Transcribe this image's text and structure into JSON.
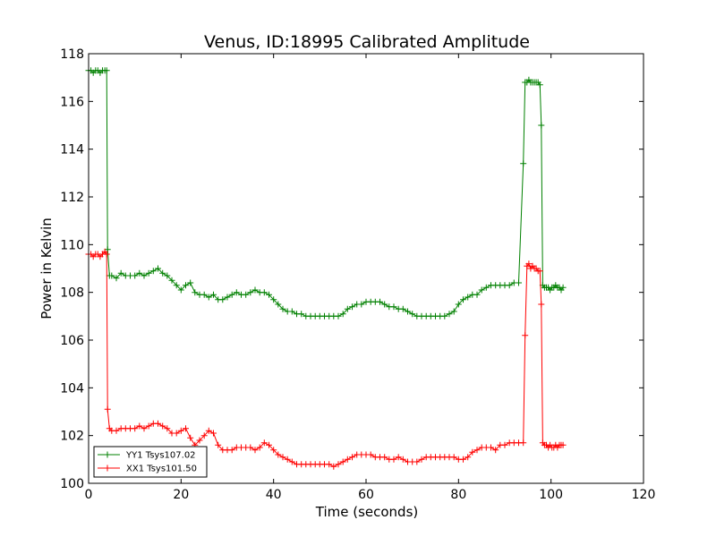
{
  "chart_data": {
    "type": "line",
    "title": "Venus, ID:18995 Calibrated Amplitude",
    "xlabel": "Time (seconds)",
    "ylabel": "Power in Kelvin",
    "xlim": [
      0,
      120
    ],
    "ylim": [
      100,
      118
    ],
    "xticks": [
      0,
      20,
      40,
      60,
      80,
      100,
      120
    ],
    "yticks": [
      100,
      102,
      104,
      106,
      108,
      110,
      112,
      114,
      116,
      118
    ],
    "grid": false,
    "legend": {
      "placement": "lower-left"
    },
    "marker": "+",
    "series": [
      {
        "name": "YY1 Tsys107.02",
        "color": "#008000",
        "x": [
          0.0,
          0.5,
          1.0,
          1.5,
          2.0,
          2.5,
          3.0,
          3.5,
          3.9,
          4.1,
          4.5,
          5,
          6,
          7,
          8,
          9,
          10,
          11,
          12,
          13,
          14,
          15,
          16,
          17,
          18,
          19,
          20,
          21,
          22,
          23,
          24,
          25,
          26,
          27,
          28,
          29,
          30,
          31,
          32,
          33,
          34,
          35,
          36,
          37,
          38,
          39,
          40,
          41,
          42,
          43,
          44,
          45,
          46,
          47,
          48,
          49,
          50,
          51,
          52,
          53,
          54,
          55,
          56,
          57,
          58,
          59,
          60,
          61,
          62,
          63,
          64,
          65,
          66,
          67,
          68,
          69,
          70,
          71,
          72,
          73,
          74,
          75,
          76,
          77,
          78,
          79,
          80,
          81,
          82,
          83,
          84,
          85,
          86,
          87,
          88,
          89,
          90,
          91,
          92,
          93,
          94,
          94.4,
          94.8,
          95.2,
          95.6,
          96.0,
          96.4,
          96.8,
          97.2,
          97.6,
          97.9,
          98.2,
          98.6,
          99.0,
          99.4,
          99.8,
          100.2,
          100.6,
          101.0,
          101.4,
          101.8,
          102.2,
          102.6
        ],
        "y": [
          117.3,
          117.3,
          117.2,
          117.3,
          117.3,
          117.2,
          117.3,
          117.3,
          117.3,
          109.8,
          108.7,
          108.7,
          108.6,
          108.8,
          108.7,
          108.7,
          108.7,
          108.8,
          108.7,
          108.8,
          108.9,
          109.0,
          108.8,
          108.7,
          108.5,
          108.3,
          108.1,
          108.3,
          108.4,
          108.0,
          107.9,
          107.9,
          107.8,
          107.9,
          107.7,
          107.7,
          107.8,
          107.9,
          108.0,
          107.9,
          107.9,
          108.0,
          108.1,
          108.0,
          108.0,
          107.9,
          107.7,
          107.5,
          107.3,
          107.2,
          107.2,
          107.1,
          107.1,
          107.0,
          107.0,
          107.0,
          107.0,
          107.0,
          107.0,
          107.0,
          107.0,
          107.1,
          107.3,
          107.4,
          107.5,
          107.5,
          107.6,
          107.6,
          107.6,
          107.6,
          107.5,
          107.4,
          107.4,
          107.3,
          107.3,
          107.2,
          107.1,
          107.0,
          107.0,
          107.0,
          107.0,
          107.0,
          107.0,
          107.0,
          107.1,
          107.2,
          107.5,
          107.7,
          107.8,
          107.9,
          107.9,
          108.1,
          108.2,
          108.3,
          108.3,
          108.3,
          108.3,
          108.3,
          108.4,
          108.4,
          113.4,
          116.8,
          116.8,
          116.9,
          116.8,
          116.8,
          116.8,
          116.8,
          116.8,
          116.7,
          115.0,
          108.3,
          108.2,
          108.2,
          108.2,
          108.1,
          108.2,
          108.2,
          108.3,
          108.2,
          108.2,
          108.1,
          108.2
        ]
      },
      {
        "name": "XX1 Tsys101.50",
        "color": "#ff0000",
        "x": [
          0.0,
          0.5,
          1.0,
          1.5,
          2.0,
          2.5,
          3.0,
          3.5,
          3.9,
          4.1,
          4.5,
          5,
          6,
          7,
          8,
          9,
          10,
          11,
          12,
          13,
          14,
          15,
          16,
          17,
          18,
          19,
          20,
          21,
          22,
          23,
          24,
          25,
          26,
          27,
          28,
          29,
          30,
          31,
          32,
          33,
          34,
          35,
          36,
          37,
          38,
          39,
          40,
          41,
          42,
          43,
          44,
          45,
          46,
          47,
          48,
          49,
          50,
          51,
          52,
          53,
          54,
          55,
          56,
          57,
          58,
          59,
          60,
          61,
          62,
          63,
          64,
          65,
          66,
          67,
          68,
          69,
          70,
          71,
          72,
          73,
          74,
          75,
          76,
          77,
          78,
          79,
          80,
          81,
          82,
          83,
          84,
          85,
          86,
          87,
          88,
          89,
          90,
          91,
          92,
          93,
          94,
          94.4,
          94.8,
          95.2,
          95.6,
          96.0,
          96.4,
          96.8,
          97.2,
          97.6,
          97.9,
          98.2,
          98.6,
          99.0,
          99.4,
          99.8,
          100.2,
          100.6,
          101.0,
          101.4,
          101.8,
          102.2,
          102.6
        ],
        "y": [
          109.6,
          109.6,
          109.5,
          109.6,
          109.6,
          109.5,
          109.6,
          109.7,
          109.6,
          103.1,
          102.3,
          102.2,
          102.2,
          102.3,
          102.3,
          102.3,
          102.3,
          102.4,
          102.3,
          102.4,
          102.5,
          102.5,
          102.4,
          102.3,
          102.1,
          102.1,
          102.2,
          102.3,
          101.9,
          101.6,
          101.8,
          102.0,
          102.2,
          102.1,
          101.6,
          101.4,
          101.4,
          101.4,
          101.5,
          101.5,
          101.5,
          101.5,
          101.4,
          101.5,
          101.7,
          101.6,
          101.4,
          101.2,
          101.1,
          101.0,
          100.9,
          100.8,
          100.8,
          100.8,
          100.8,
          100.8,
          100.8,
          100.8,
          100.8,
          100.7,
          100.8,
          100.9,
          101.0,
          101.1,
          101.2,
          101.2,
          101.2,
          101.2,
          101.1,
          101.1,
          101.1,
          101.0,
          101.0,
          101.1,
          101.0,
          100.9,
          100.9,
          100.9,
          101.0,
          101.1,
          101.1,
          101.1,
          101.1,
          101.1,
          101.1,
          101.1,
          101.0,
          101.0,
          101.1,
          101.3,
          101.4,
          101.5,
          101.5,
          101.5,
          101.4,
          101.6,
          101.6,
          101.7,
          101.7,
          101.7,
          101.7,
          106.2,
          109.1,
          109.2,
          109.0,
          109.1,
          109.0,
          109.0,
          108.9,
          108.9,
          107.5,
          101.7,
          101.6,
          101.6,
          101.5,
          101.6,
          101.5,
          101.5,
          101.6,
          101.5,
          101.6,
          101.6,
          101.6
        ]
      }
    ]
  }
}
